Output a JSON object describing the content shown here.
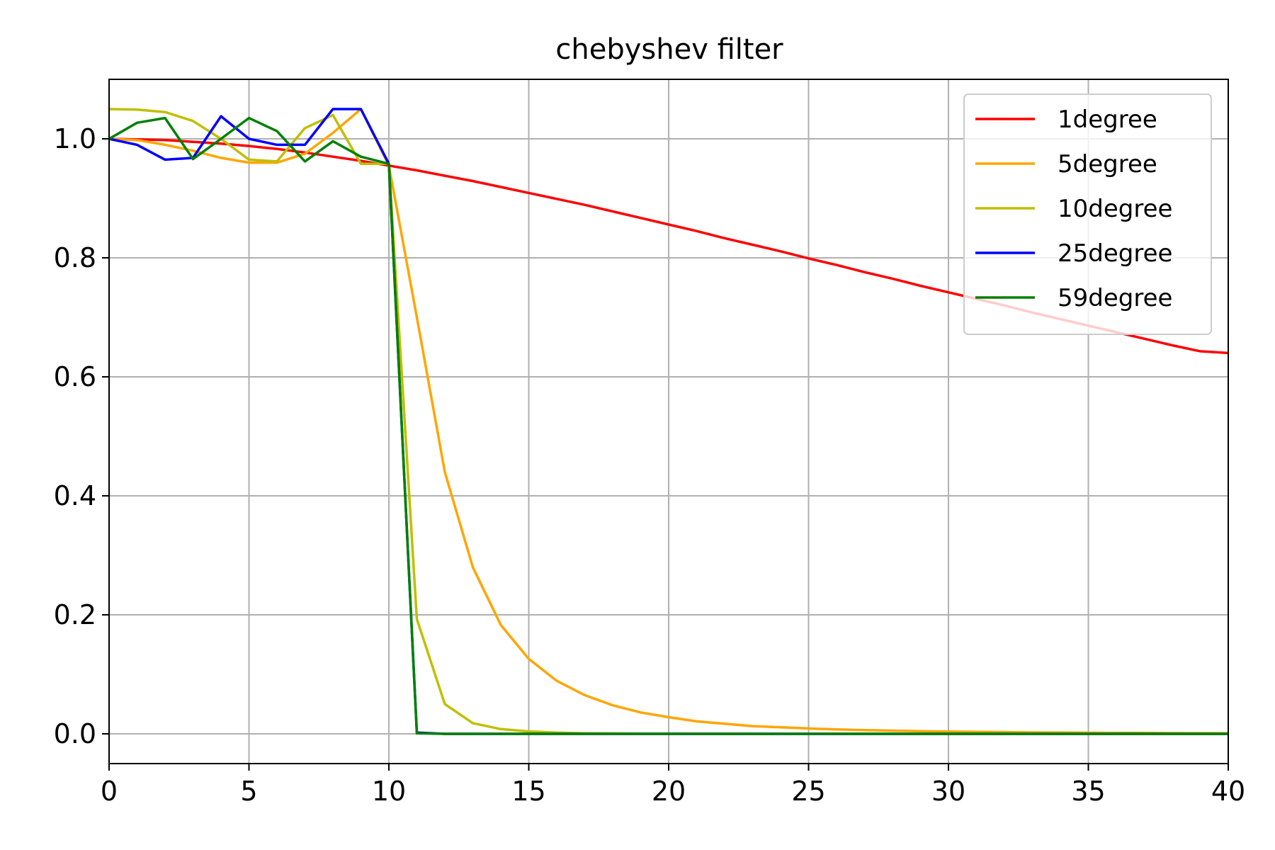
{
  "chart_data": {
    "type": "line",
    "title": "chebyshev filter",
    "xlabel": "",
    "ylabel": "",
    "xlim": [
      0,
      40
    ],
    "ylim": [
      -0.05,
      1.1
    ],
    "xticks": [
      0,
      5,
      10,
      15,
      20,
      25,
      30,
      35,
      40
    ],
    "yticks": [
      0.0,
      0.2,
      0.4,
      0.6,
      0.8,
      1.0
    ],
    "xtick_labels": [
      "0",
      "5",
      "10",
      "15",
      "20",
      "25",
      "30",
      "35",
      "40"
    ],
    "ytick_labels": [
      "0.0",
      "0.2",
      "0.4",
      "0.6",
      "0.8",
      "1.0"
    ],
    "grid": true,
    "legend_position": "top-right",
    "x": [
      0,
      1,
      2,
      3,
      4,
      5,
      6,
      7,
      8,
      9,
      10,
      11,
      12,
      13,
      14,
      15,
      16,
      17,
      18,
      19,
      20,
      21,
      22,
      23,
      24,
      25,
      26,
      27,
      28,
      29,
      30,
      31,
      32,
      33,
      34,
      35,
      36,
      37,
      38,
      39,
      40
    ],
    "series": [
      {
        "name": "1degree",
        "color": "#ff0000",
        "values": [
          1.0,
          0.999,
          0.998,
          0.995,
          0.992,
          0.988,
          0.983,
          0.977,
          0.97,
          0.963,
          0.955,
          0.947,
          0.938,
          0.929,
          0.919,
          0.909,
          0.899,
          0.889,
          0.878,
          0.867,
          0.856,
          0.845,
          0.833,
          0.822,
          0.811,
          0.799,
          0.788,
          0.776,
          0.765,
          0.753,
          0.742,
          0.731,
          0.72,
          0.708,
          0.697,
          0.686,
          0.675,
          0.664,
          0.653,
          0.643,
          0.64
        ]
      },
      {
        "name": "5degree",
        "color": "#ffa500",
        "values": [
          1.0,
          0.998,
          0.99,
          0.98,
          0.968,
          0.96,
          0.96,
          0.975,
          1.01,
          1.05,
          0.955,
          0.7,
          0.44,
          0.28,
          0.183,
          0.126,
          0.089,
          0.065,
          0.048,
          0.036,
          0.028,
          0.021,
          0.017,
          0.013,
          0.011,
          0.009,
          0.0075,
          0.0063,
          0.0053,
          0.0045,
          0.0038,
          0.0033,
          0.0028,
          0.0024,
          0.0021,
          0.0018,
          0.0016,
          0.0014,
          0.0012,
          0.0011,
          0.001
        ]
      },
      {
        "name": "10degree",
        "color": "#bfbf00",
        "values": [
          1.05,
          1.049,
          1.045,
          1.03,
          1.0,
          0.965,
          0.962,
          1.018,
          1.04,
          0.958,
          0.958,
          0.193,
          0.05,
          0.018,
          0.008,
          0.004,
          0.002,
          0.001,
          0.0006,
          0.0003,
          0.0002,
          0,
          0,
          0,
          0,
          0,
          0,
          0,
          0,
          0,
          0,
          0,
          0,
          0,
          0,
          0,
          0,
          0,
          0,
          0,
          0
        ]
      },
      {
        "name": "25degree",
        "color": "#0000ff",
        "values": [
          1.0,
          0.99,
          0.965,
          0.968,
          1.038,
          1.0,
          0.99,
          0.99,
          1.05,
          1.05,
          0.958,
          0.002,
          0,
          0,
          0,
          0,
          0,
          0,
          0,
          0,
          0,
          0,
          0,
          0,
          0,
          0,
          0,
          0,
          0,
          0,
          0,
          0,
          0,
          0,
          0,
          0,
          0,
          0,
          0,
          0,
          0
        ]
      },
      {
        "name": "59degree",
        "color": "#008000",
        "values": [
          1.0,
          1.027,
          1.035,
          0.966,
          1.0,
          1.035,
          1.013,
          0.962,
          0.996,
          0.97,
          0.958,
          0.001,
          0,
          0,
          0,
          0,
          0,
          0,
          0,
          0,
          0,
          0,
          0,
          0,
          0,
          0,
          0,
          0,
          0,
          0,
          0,
          0,
          0,
          0,
          0,
          0,
          0,
          0,
          0,
          0,
          0
        ]
      }
    ]
  }
}
